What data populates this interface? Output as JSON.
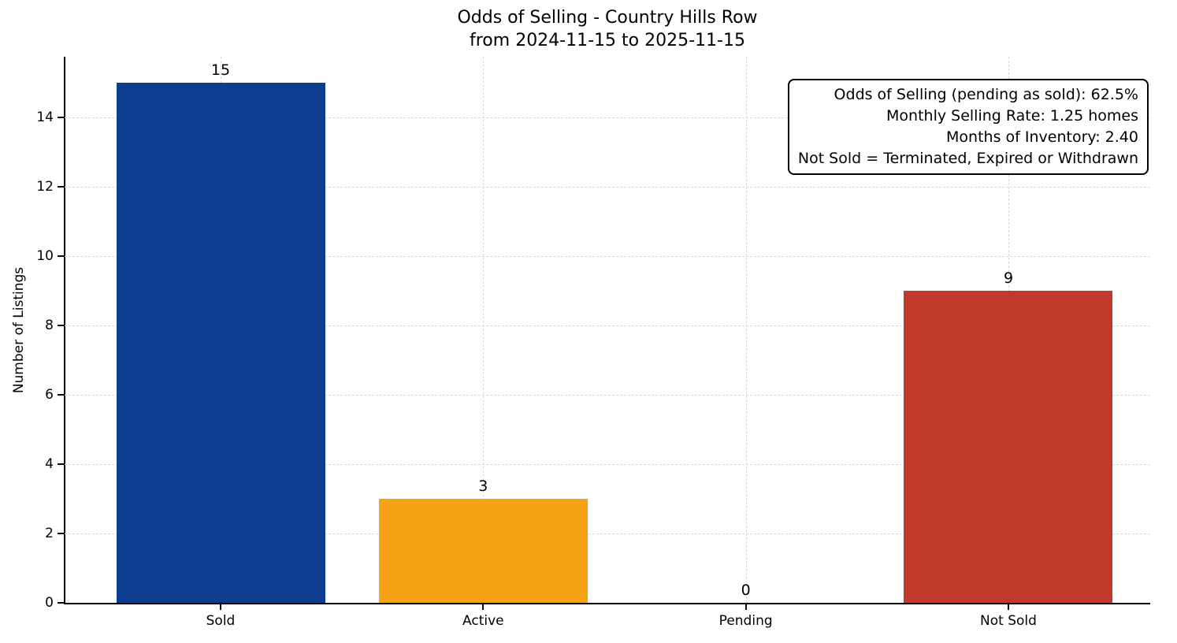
{
  "chart_data": {
    "type": "bar",
    "title": "Odds of Selling - Country Hills Row",
    "subtitle": "from 2024-11-15 to 2025-11-15",
    "ylabel": "Number of Listings",
    "xlabel": "",
    "categories": [
      "Sold",
      "Active",
      "Pending",
      "Not Sold"
    ],
    "values": [
      15,
      3,
      0,
      9
    ],
    "value_labels": [
      "15",
      "3",
      "0",
      "9"
    ],
    "bar_colors": [
      "#0d3d91",
      "#f5a214",
      "#808080",
      "#c0392b"
    ],
    "ylim": [
      0,
      15.75
    ],
    "yticks": [
      0,
      2,
      4,
      6,
      8,
      10,
      12,
      14
    ],
    "grid": true,
    "grid_style": "dashed",
    "legend": "none",
    "annotation": {
      "lines": [
        "Odds of Selling (pending as sold): 62.5%",
        "Monthly Selling Rate: 1.25 homes",
        "Months of Inventory: 2.40",
        "Not Sold = Terminated, Expired or Withdrawn"
      ]
    }
  }
}
